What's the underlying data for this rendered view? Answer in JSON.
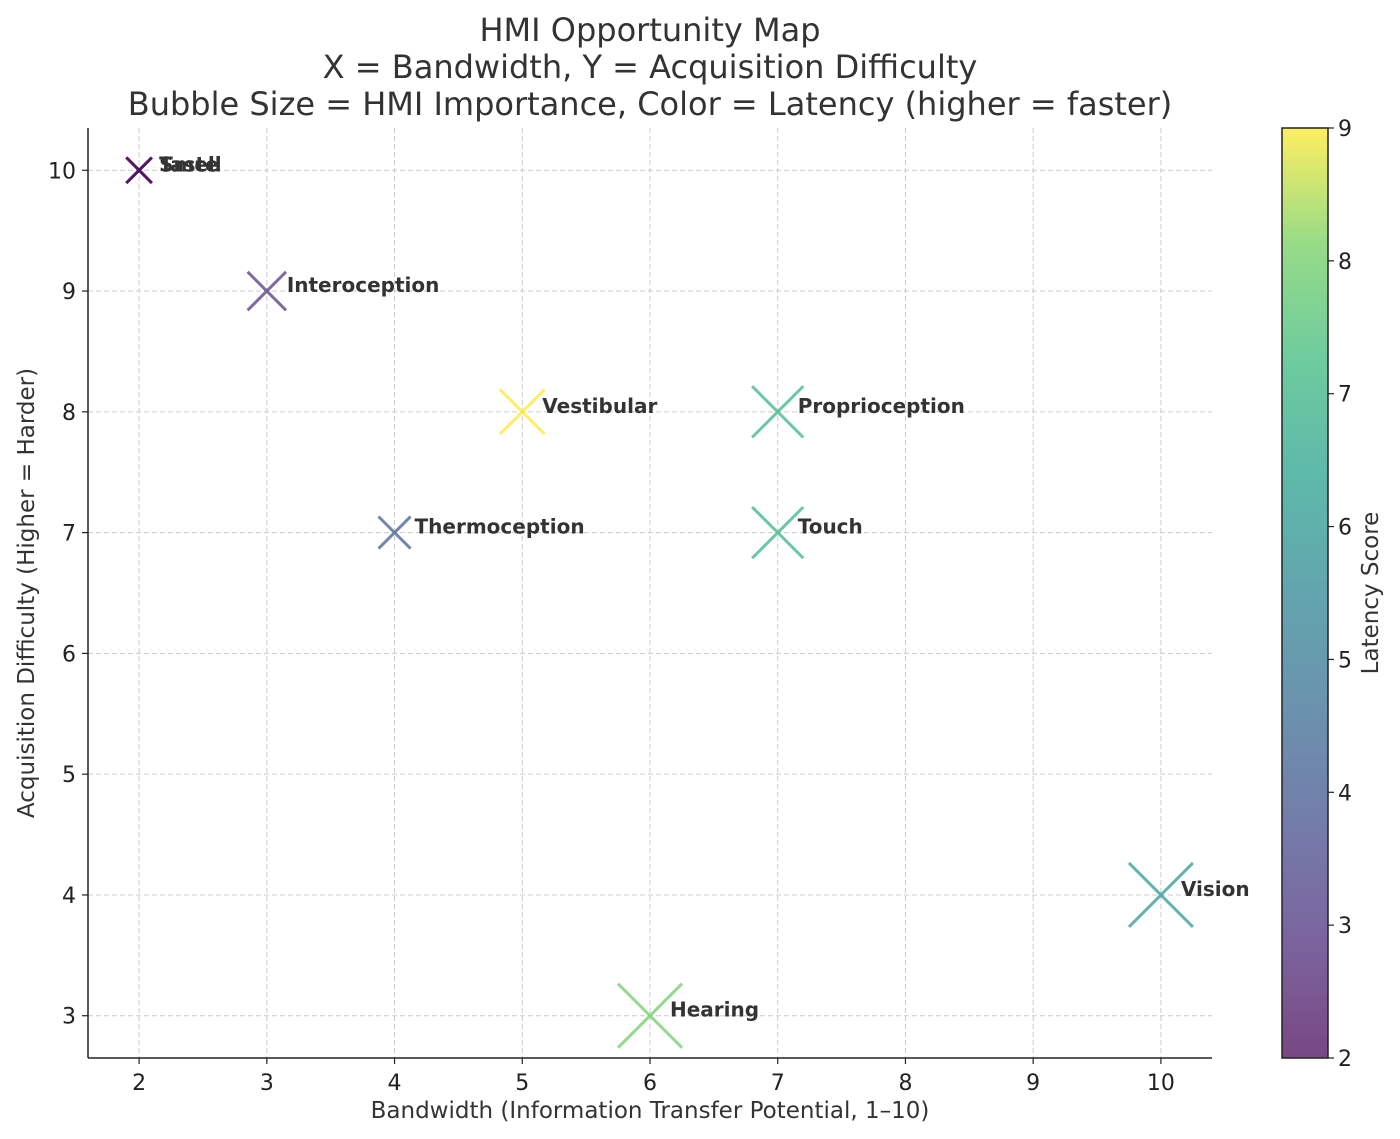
{
  "chart_data": {
    "type": "scatter",
    "title_lines": [
      "HMI Opportunity Map",
      "X = Bandwidth, Y = Acquisition Difficulty",
      "Bubble Size = HMI Importance, Color = Latency (higher = faster)"
    ],
    "xlabel": "Bandwidth (Information Transfer Potential, 1–10)",
    "ylabel": "Acquisition Difficulty (Higher = Harder)",
    "xlim": [
      1.6,
      10.4
    ],
    "ylim": [
      2.65,
      10.35
    ],
    "xticks": [
      "2",
      "3",
      "4",
      "5",
      "6",
      "7",
      "8",
      "9",
      "10"
    ],
    "yticks": [
      "3",
      "4",
      "5",
      "6",
      "7",
      "8",
      "9",
      "10"
    ],
    "grid": true,
    "marker": "x",
    "colorbar": {
      "label": "Latency Score",
      "range": [
        2,
        9
      ],
      "ticks": [
        "2",
        "3",
        "4",
        "5",
        "6",
        "7",
        "8",
        "9"
      ],
      "colormap": "viridis"
    },
    "points": [
      {
        "label": "Vision",
        "x": 10,
        "y": 4,
        "latency": 6,
        "importance": 10
      },
      {
        "label": "Hearing",
        "x": 6,
        "y": 3,
        "latency": 8,
        "importance": 10
      },
      {
        "label": "Touch",
        "x": 7,
        "y": 7,
        "latency": 7,
        "importance": 8
      },
      {
        "label": "Proprioception",
        "x": 7,
        "y": 8,
        "latency": 7,
        "importance": 8
      },
      {
        "label": "Vestibular",
        "x": 5,
        "y": 8,
        "latency": 9,
        "importance": 7
      },
      {
        "label": "Thermoception",
        "x": 4,
        "y": 7,
        "latency": 4,
        "importance": 5
      },
      {
        "label": "Interoception",
        "x": 3,
        "y": 9,
        "latency": 3,
        "importance": 6
      },
      {
        "label": "Smell",
        "x": 2,
        "y": 10,
        "latency": 2,
        "importance": 4
      },
      {
        "label": "Taste",
        "x": 2,
        "y": 10,
        "latency": 2,
        "importance": 4
      }
    ]
  }
}
